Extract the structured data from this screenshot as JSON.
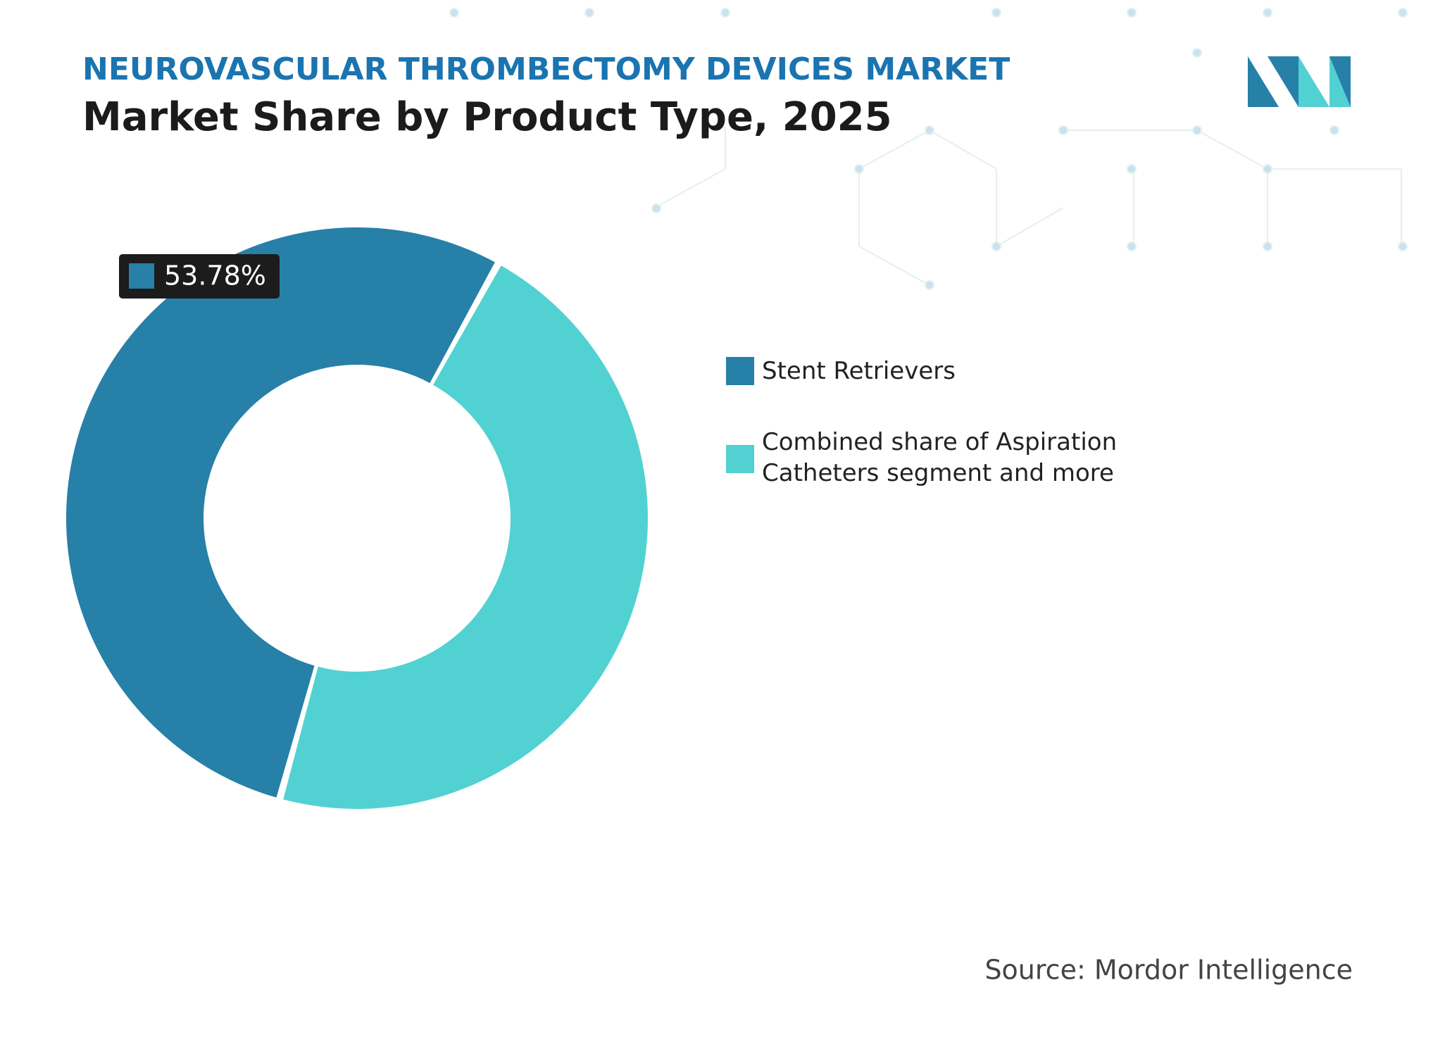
{
  "chart_data": {
    "type": "donut",
    "header": "NEUROVASCULAR THROMBECTOMY DEVICES MARKET",
    "title": "Market Share by Product Type, 2025",
    "categories": [
      "Stent Retrievers",
      "Combined share of Aspiration Catheters segment and more"
    ],
    "values": [
      53.78,
      46.22
    ],
    "value_labels": [
      "53.78%",
      null
    ],
    "colors": [
      "#2680a8",
      "#52d1d2"
    ],
    "source": "Source: Mordor Intelligence"
  }
}
